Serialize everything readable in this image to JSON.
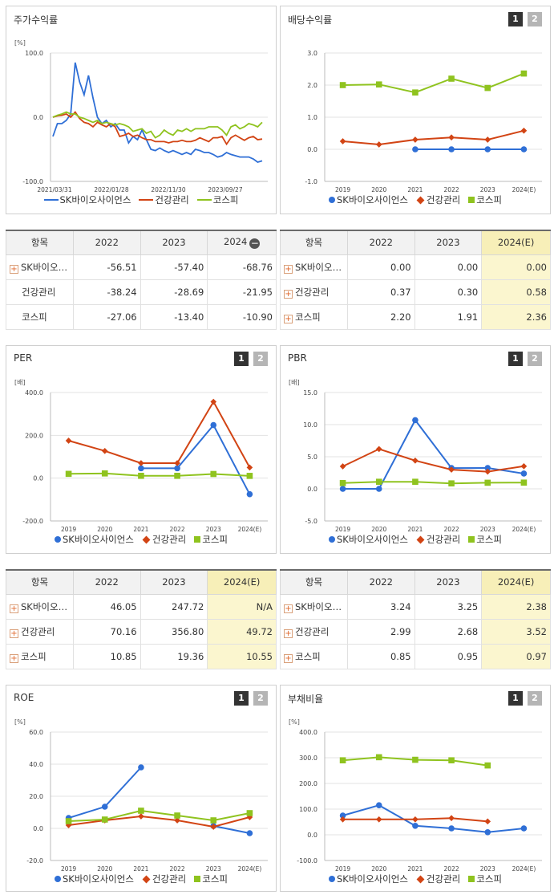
{
  "panels": {
    "stock_return": {
      "title": "주가수익률"
    },
    "dividend": {
      "title": "배당수익률"
    },
    "per": {
      "title": "PER"
    },
    "pbr": {
      "title": "PBR"
    },
    "roe": {
      "title": "ROE"
    },
    "debt": {
      "title": "부채비율"
    }
  },
  "badges": {
    "b1": "1",
    "b2": "2"
  },
  "legend": {
    "s1": "SK바이오사이언스",
    "s2": "건강관리",
    "s3": "코스피"
  },
  "colors": {
    "s1": "#2f6fd6",
    "s2": "#d24414",
    "s3": "#8fc31f"
  },
  "chart_data": [
    {
      "id": "stock_return",
      "type": "line",
      "unit": "[%]",
      "ylim": [
        -100,
        100
      ],
      "yticks": [
        "100.0",
        "0.0",
        "-100.0"
      ],
      "xticks": [
        "2021/03/31",
        "2022/01/28",
        "2022/11/30",
        "2023/09/27"
      ],
      "series": [
        {
          "name": "SK바이오사이언스",
          "values": [
            -30,
            -10,
            -10,
            -5,
            5,
            85,
            55,
            35,
            65,
            30,
            0,
            -10,
            -5,
            -15,
            -10,
            -20,
            -20,
            -40,
            -30,
            -35,
            -20,
            -35,
            -50,
            -52,
            -48,
            -52,
            -55,
            -52,
            -55,
            -58,
            -55,
            -58,
            -50,
            -52,
            -55,
            -55,
            -58,
            -62,
            -60,
            -55,
            -58,
            -60,
            -62,
            -62,
            -62,
            -65,
            -70,
            -68
          ]
        },
        {
          "name": "건강관리",
          "values": [
            0,
            2,
            3,
            5,
            0,
            8,
            -2,
            -8,
            -10,
            -15,
            -8,
            -12,
            -15,
            -10,
            -15,
            -30,
            -28,
            -25,
            -30,
            -28,
            -32,
            -35,
            -35,
            -38,
            -38,
            -38,
            -40,
            -38,
            -38,
            -36,
            -38,
            -38,
            -36,
            -32,
            -35,
            -38,
            -32,
            -32,
            -30,
            -42,
            -32,
            -28,
            -32,
            -36,
            -32,
            -30,
            -35,
            -34
          ]
        },
        {
          "name": "코스피",
          "values": [
            0,
            3,
            5,
            8,
            5,
            5,
            0,
            -2,
            -5,
            -8,
            -5,
            -10,
            -8,
            -10,
            -12,
            -10,
            -12,
            -15,
            -22,
            -20,
            -18,
            -25,
            -22,
            -32,
            -28,
            -20,
            -25,
            -28,
            -20,
            -22,
            -18,
            -22,
            -18,
            -18,
            -18,
            -15,
            -15,
            -15,
            -20,
            -28,
            -15,
            -12,
            -18,
            -15,
            -10,
            -12,
            -15,
            -8
          ]
        }
      ]
    },
    {
      "id": "dividend",
      "type": "line",
      "unit": "",
      "ylim": [
        -1,
        3
      ],
      "yticks": [
        "3.0",
        "2.0",
        "1.0",
        "0.0",
        "-1.0"
      ],
      "categories": [
        "2019",
        "2020",
        "2021",
        "2022",
        "2023",
        "2024(E)"
      ],
      "series": [
        {
          "name": "SK바이오사이언스",
          "values": [
            null,
            null,
            0.0,
            0.0,
            0.0,
            0.0
          ]
        },
        {
          "name": "건강관리",
          "values": [
            0.25,
            0.15,
            0.3,
            0.37,
            0.3,
            0.58
          ]
        },
        {
          "name": "코스피",
          "values": [
            2.0,
            2.02,
            1.77,
            2.2,
            1.91,
            2.36
          ]
        }
      ]
    },
    {
      "id": "per",
      "type": "line",
      "unit": "[배]",
      "ylim": [
        -200,
        400
      ],
      "yticks": [
        "400.0",
        "200.0",
        "0.0",
        "-200.0"
      ],
      "categories": [
        "2019",
        "2020",
        "2021",
        "2022",
        "2023",
        "2024(E)"
      ],
      "series": [
        {
          "name": "SK바이오사이언스",
          "values": [
            null,
            null,
            46.05,
            46.05,
            247.72,
            -75
          ]
        },
        {
          "name": "건강관리",
          "values": [
            175,
            127,
            70.16,
            70.16,
            356.8,
            49.72
          ]
        },
        {
          "name": "코스피",
          "values": [
            20,
            22,
            10.85,
            10.85,
            19.36,
            10.55
          ]
        }
      ]
    },
    {
      "id": "pbr",
      "type": "line",
      "unit": "[배]",
      "ylim": [
        -5,
        15
      ],
      "yticks": [
        "15.0",
        "10.0",
        "5.0",
        "0.0",
        "-5.0"
      ],
      "categories": [
        "2019",
        "2020",
        "2021",
        "2022",
        "2023",
        "2024(E)"
      ],
      "series": [
        {
          "name": "SK바이오사이언스",
          "values": [
            0.0,
            0.0,
            10.7,
            3.24,
            3.25,
            2.38
          ]
        },
        {
          "name": "건강관리",
          "values": [
            3.5,
            6.2,
            4.4,
            2.99,
            2.68,
            3.52
          ]
        },
        {
          "name": "코스피",
          "values": [
            0.9,
            1.1,
            1.1,
            0.85,
            0.95,
            0.97
          ]
        }
      ]
    },
    {
      "id": "roe",
      "type": "line",
      "unit": "[%]",
      "ylim": [
        -20,
        60
      ],
      "yticks": [
        "60.0",
        "40.0",
        "20.0",
        "0.0",
        "-20.0"
      ],
      "categories": [
        "2019",
        "2020",
        "2021",
        "2022",
        "2023",
        "2024(E)"
      ],
      "series": [
        {
          "name": "SK바이오사이언스",
          "values": [
            6.5,
            13.5,
            38.0,
            null,
            1.5,
            -3.0
          ]
        },
        {
          "name": "건강관리",
          "values": [
            2.0,
            5.0,
            7.5,
            5.0,
            1.0,
            7.0
          ]
        },
        {
          "name": "코스피",
          "values": [
            4.5,
            5.5,
            11.0,
            8.0,
            5.0,
            9.5
          ]
        }
      ]
    },
    {
      "id": "debt",
      "type": "line",
      "unit": "[%]",
      "ylim": [
        -100,
        400
      ],
      "yticks": [
        "400.0",
        "300.0",
        "200.0",
        "100.0",
        "0.0",
        "-100.0"
      ],
      "categories": [
        "2019",
        "2020",
        "2021",
        "2022",
        "2023",
        "2024(E)"
      ],
      "series": [
        {
          "name": "SK바이오사이언스",
          "values": [
            75,
            115,
            35,
            25,
            10,
            25
          ]
        },
        {
          "name": "건강관리",
          "values": [
            60,
            60,
            60,
            65,
            52,
            null
          ]
        },
        {
          "name": "코스피",
          "values": [
            290,
            302,
            292,
            290,
            270,
            null
          ]
        }
      ]
    }
  ],
  "tables": {
    "stock_return": {
      "headers": [
        "항목",
        "2022",
        "2023",
        "2024"
      ],
      "rows": [
        {
          "name": "SK바이오…",
          "v": [
            "-56.51",
            "-57.40",
            "-68.76"
          ]
        },
        {
          "name": "건강관리",
          "v": [
            "-38.24",
            "-28.69",
            "-21.95"
          ]
        },
        {
          "name": "코스피",
          "v": [
            "-27.06",
            "-13.40",
            "-10.90"
          ]
        }
      ]
    },
    "dividend": {
      "headers": [
        "항목",
        "2022",
        "2023",
        "2024(E)"
      ],
      "rows": [
        {
          "name": "SK바이오…",
          "v": [
            "0.00",
            "0.00",
            "0.00"
          ]
        },
        {
          "name": "건강관리",
          "v": [
            "0.37",
            "0.30",
            "0.58"
          ]
        },
        {
          "name": "코스피",
          "v": [
            "2.20",
            "1.91",
            "2.36"
          ]
        }
      ]
    },
    "per": {
      "headers": [
        "항목",
        "2022",
        "2023",
        "2024(E)"
      ],
      "rows": [
        {
          "name": "SK바이오…",
          "v": [
            "46.05",
            "247.72",
            "N/A"
          ]
        },
        {
          "name": "건강관리",
          "v": [
            "70.16",
            "356.80",
            "49.72"
          ]
        },
        {
          "name": "코스피",
          "v": [
            "10.85",
            "19.36",
            "10.55"
          ]
        }
      ]
    },
    "pbr": {
      "headers": [
        "항목",
        "2022",
        "2023",
        "2024(E)"
      ],
      "rows": [
        {
          "name": "SK바이오…",
          "v": [
            "3.24",
            "3.25",
            "2.38"
          ]
        },
        {
          "name": "건강관리",
          "v": [
            "2.99",
            "2.68",
            "3.52"
          ]
        },
        {
          "name": "코스피",
          "v": [
            "0.85",
            "0.95",
            "0.97"
          ]
        }
      ]
    }
  }
}
